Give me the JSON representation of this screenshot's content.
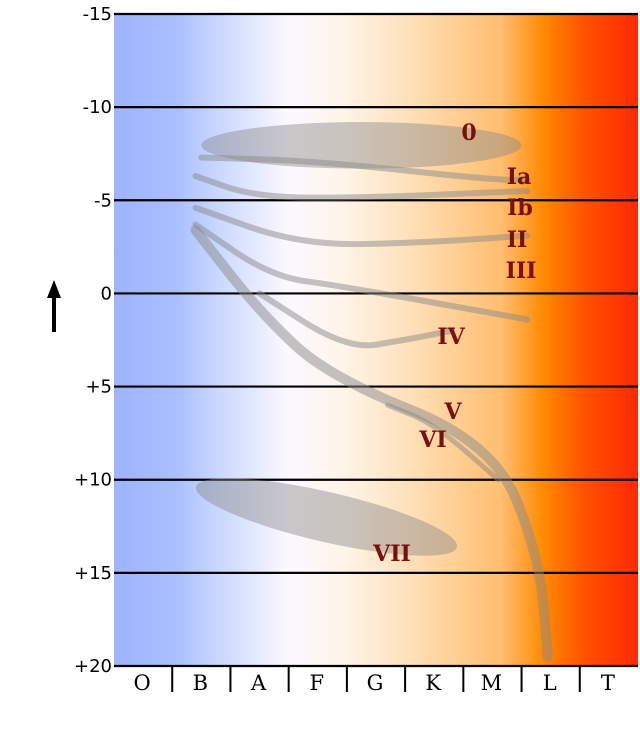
{
  "chart_data": {
    "type": "scatter",
    "y_axis": {
      "ticks": [
        -15,
        -10,
        -5,
        0,
        5,
        10,
        15,
        20
      ],
      "tick_labels": [
        "-15",
        "-10",
        "-5",
        "0",
        "+5",
        "+10",
        "+15",
        "+20"
      ],
      "ylim": [
        -15,
        20
      ],
      "inverted": true,
      "grid": true
    },
    "x_axis": {
      "categories": [
        "O",
        "B",
        "A",
        "F",
        "G",
        "K",
        "M",
        "L",
        "T"
      ]
    },
    "background_gradient": [
      "#9db4ff",
      "#aabfff",
      "#cad8ff",
      "#fbf8ff",
      "#fff4e8",
      "#ffddb4",
      "#ffbd6f",
      "#ff8a00",
      "#ff5000",
      "#ff2a00"
    ],
    "luminosity_classes": [
      {
        "label": "0",
        "color": "#7a0f0f"
      },
      {
        "label": "Ia",
        "color": "#7a0f0f"
      },
      {
        "label": "Ib",
        "color": "#7a0f0f"
      },
      {
        "label": "II",
        "color": "#7a0f0f"
      },
      {
        "label": "III",
        "color": "#7a0f0f"
      },
      {
        "label": "IV",
        "color": "#7a0f0f"
      },
      {
        "label": "V",
        "color": "#7a0f0f"
      },
      {
        "label": "VI",
        "color": "#7a0f0f"
      },
      {
        "label": "VII",
        "color": "#7a0f0f"
      }
    ],
    "sequences": [
      {
        "class": "0",
        "shape": "ellipse",
        "x_range": [
          1.0,
          6.5
        ],
        "y_range": [
          -9.2,
          -6.7
        ]
      },
      {
        "class": "Ia",
        "shape": "band",
        "points": [
          [
            1.0,
            -7.3
          ],
          [
            3.0,
            -7.1
          ],
          [
            6.0,
            -6.1
          ],
          [
            6.6,
            -6.1
          ]
        ]
      },
      {
        "class": "Ib",
        "shape": "band",
        "points": [
          [
            0.9,
            -6.3
          ],
          [
            1.9,
            -5.2
          ],
          [
            3.5,
            -5.1
          ],
          [
            6.6,
            -5.5
          ]
        ]
      },
      {
        "class": "II",
        "shape": "band",
        "points": [
          [
            0.9,
            -4.6
          ],
          [
            2.7,
            -2.6
          ],
          [
            4.7,
            -2.7
          ],
          [
            6.6,
            -3.1
          ]
        ]
      },
      {
        "class": "III",
        "shape": "band",
        "points": [
          [
            0.9,
            -3.7
          ],
          [
            2.2,
            -0.9
          ],
          [
            3.4,
            -0.4
          ],
          [
            6.6,
            1.4
          ]
        ]
      },
      {
        "class": "IV",
        "shape": "band",
        "points": [
          [
            2.0,
            0.0
          ],
          [
            3.5,
            3.0
          ],
          [
            4.5,
            2.5
          ],
          [
            5.3,
            2.0
          ]
        ]
      },
      {
        "class": "V",
        "shape": "band",
        "points": [
          [
            0.9,
            -3.4
          ],
          [
            2.0,
            1.0
          ],
          [
            3.2,
            4.5
          ],
          [
            6.0,
            8.0
          ],
          [
            6.8,
            14.0
          ],
          [
            6.95,
            19.5
          ]
        ]
      },
      {
        "class": "VI",
        "shape": "band",
        "points": [
          [
            4.2,
            6.0
          ],
          [
            5.0,
            7.0
          ],
          [
            6.1,
            10.0
          ]
        ]
      },
      {
        "class": "VII",
        "shape": "ellipse",
        "x_range": [
          0.85,
          5.45
        ],
        "y_range": [
          10.0,
          14.0
        ]
      }
    ]
  }
}
